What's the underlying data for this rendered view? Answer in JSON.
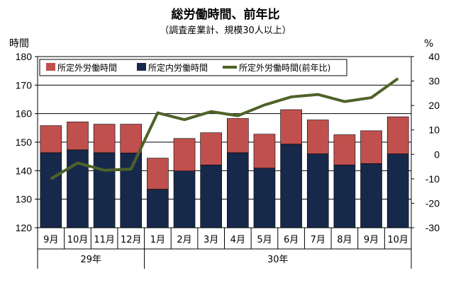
{
  "chart_data": {
    "type": "bar+line",
    "title": "総労働時間、前年比",
    "subtitle": "（調査産業計、規模30人以上）",
    "y_left_label": "時間",
    "y_right_label": "%",
    "y_left_range": [
      120,
      180
    ],
    "y_left_ticks": [
      "120",
      "130",
      "140",
      "150",
      "160",
      "170",
      "180"
    ],
    "y_right_range": [
      -30,
      40
    ],
    "y_right_ticks": [
      "-30",
      "-20",
      "-10",
      "0",
      "10",
      "20",
      "30",
      "40"
    ],
    "categories": [
      "9月",
      "10月",
      "11月",
      "12月",
      "1月",
      "2月",
      "3月",
      "4月",
      "5月",
      "6月",
      "7月",
      "8月",
      "9月",
      "10月"
    ],
    "year_groups": [
      {
        "label": "29年",
        "count": 4
      },
      {
        "label": "30年",
        "count": 10
      }
    ],
    "series": [
      {
        "name": "所定内労働時間",
        "kind": "bar-stack-bottom",
        "color": "#17294b",
        "values": [
          146.3,
          147.3,
          146.3,
          146.2,
          133.5,
          139.9,
          142.0,
          146.3,
          140.9,
          149.3,
          145.9,
          142.0,
          142.5,
          145.9
        ]
      },
      {
        "name": "所定外労働時間",
        "kind": "bar-stack-top",
        "color": "#c0504d",
        "values": [
          9.5,
          9.8,
          10.0,
          10.1,
          10.9,
          11.4,
          11.3,
          12.0,
          11.9,
          12.1,
          11.9,
          10.6,
          11.5,
          13.0
        ]
      },
      {
        "name": "所定外労働時間(前年比)",
        "kind": "line",
        "axis": "right",
        "color": "#4f6228",
        "values": [
          -10.0,
          -3.5,
          -6.5,
          -6.0,
          17.0,
          14.2,
          17.5,
          15.8,
          20.2,
          23.5,
          24.5,
          21.6,
          23.2,
          31.0
        ]
      }
    ],
    "legend": [
      "所定外労働時間",
      "所定内労働時間",
      "所定外労働時間(前年比)"
    ],
    "grid": true
  }
}
